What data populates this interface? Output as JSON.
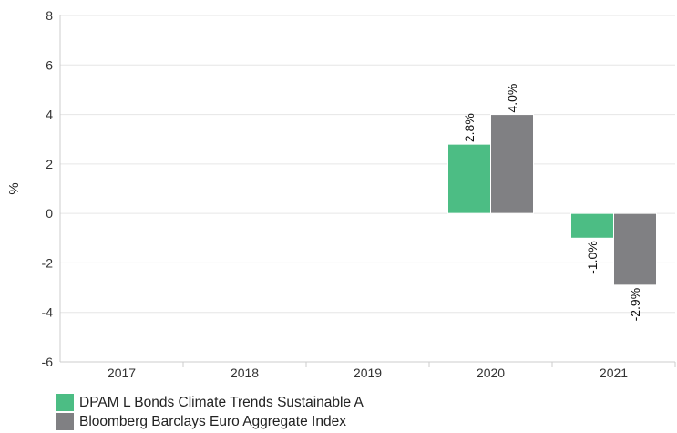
{
  "chart_data": {
    "type": "bar",
    "categories": [
      "2017",
      "2018",
      "2019",
      "2020",
      "2021"
    ],
    "series": [
      {
        "name": "DPAM L Bonds Climate Trends Sustainable A",
        "color": "#4cbd84",
        "values": [
          null,
          null,
          null,
          2.8,
          -1.0
        ],
        "labels": [
          "",
          "",
          "",
          "2.8%",
          "-1.0%"
        ]
      },
      {
        "name": "Bloomberg Barclays Euro Aggregate Index",
        "color": "#808083",
        "values": [
          null,
          null,
          null,
          4.0,
          -2.9
        ],
        "labels": [
          "",
          "",
          "",
          "4.0%",
          "-2.9%"
        ]
      }
    ],
    "ylabel": "%",
    "ylim": [
      -6,
      8
    ],
    "yticks": [
      8,
      6,
      4,
      2,
      0,
      -2,
      -4,
      -6
    ],
    "ytick_labels": [
      "8",
      "6",
      "4",
      "2",
      "0",
      "-2",
      "-4",
      "-6"
    ],
    "grid": true,
    "legend_position": "bottom-left"
  }
}
